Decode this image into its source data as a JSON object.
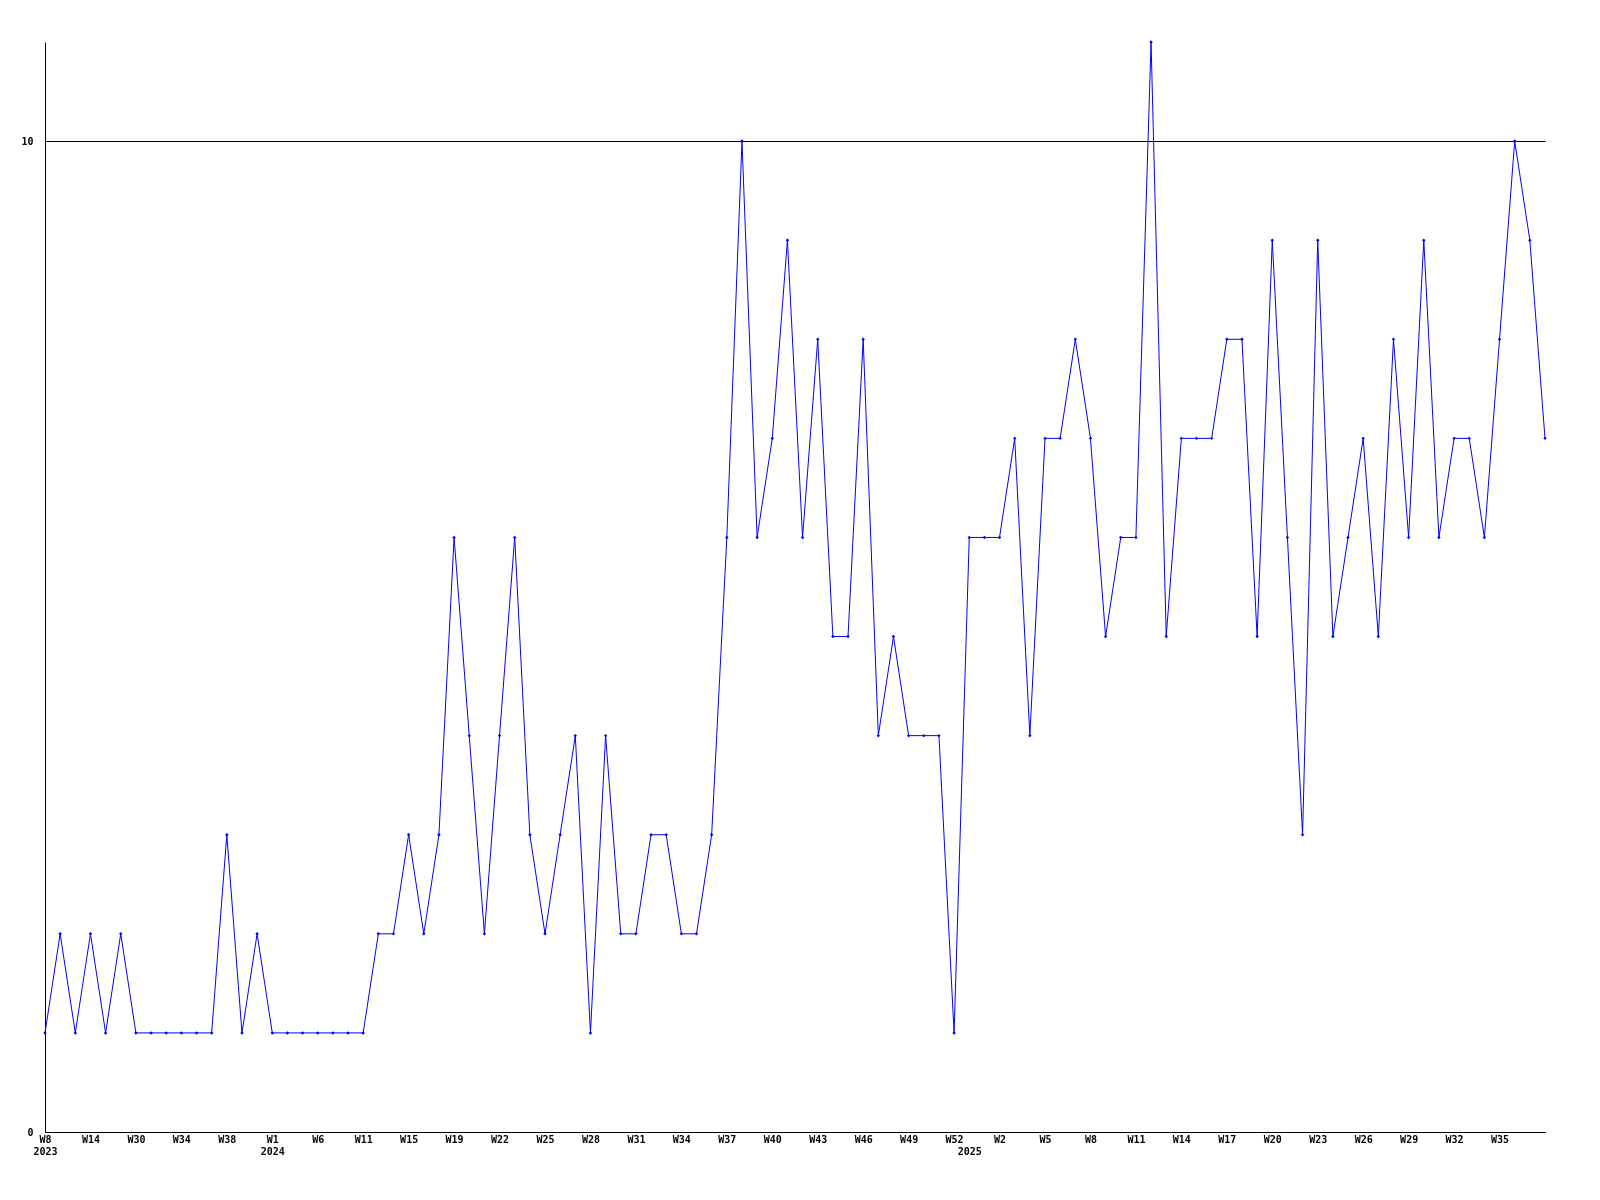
{
  "chart_data": {
    "type": "line",
    "categories": [
      "W8\n2023",
      null,
      null,
      "W14",
      null,
      null,
      "W30",
      null,
      null,
      "W34",
      null,
      null,
      "W38",
      null,
      null,
      "W1\n2024",
      null,
      null,
      "W6",
      null,
      null,
      "W11",
      null,
      null,
      "W15",
      null,
      null,
      "W19",
      null,
      null,
      "W22",
      null,
      null,
      "W25",
      null,
      null,
      "W28",
      null,
      null,
      "W31",
      null,
      null,
      "W34",
      null,
      null,
      "W37",
      null,
      null,
      "W40",
      null,
      null,
      "W43",
      null,
      null,
      "W46",
      null,
      null,
      "W49",
      null,
      null,
      "W52",
      "\n2025",
      null,
      "W2",
      null,
      null,
      "W5",
      null,
      null,
      "W8",
      null,
      null,
      "W11",
      null,
      null,
      "W14",
      null,
      null,
      "W17",
      null,
      null,
      "W20",
      null,
      null,
      "W23",
      null,
      null,
      "W26",
      null,
      null,
      "W29",
      null,
      null,
      "W32",
      null,
      null,
      "W35",
      null,
      null,
      null
    ],
    "series": [
      {
        "color": "#0000ff",
        "values": [
          1,
          2,
          1,
          2,
          1,
          2,
          1,
          1,
          1,
          1,
          1,
          1,
          3,
          1,
          2,
          1,
          1,
          1,
          1,
          1,
          1,
          1,
          2,
          2,
          3,
          2,
          3,
          6,
          4,
          2,
          4,
          6,
          3,
          2,
          3,
          4,
          1,
          4,
          2,
          2,
          3,
          3,
          2,
          2,
          3,
          6,
          10,
          6,
          7,
          9,
          6,
          8,
          5,
          5,
          8,
          4,
          5,
          4,
          4,
          4,
          1,
          6,
          6,
          6,
          7,
          4,
          7,
          7,
          8,
          7,
          5,
          6,
          6,
          11,
          5,
          7,
          7,
          7,
          8,
          8,
          5,
          9,
          6,
          3,
          9,
          5,
          6,
          7,
          5,
          8,
          6,
          9,
          6,
          7,
          7,
          6,
          8,
          10,
          9,
          7
        ]
      }
    ],
    "ylim": [
      0,
      11
    ],
    "yticks": [
      0,
      10
    ],
    "grid": "y",
    "marker": "diamond",
    "line_style": "solid",
    "legend": false
  }
}
